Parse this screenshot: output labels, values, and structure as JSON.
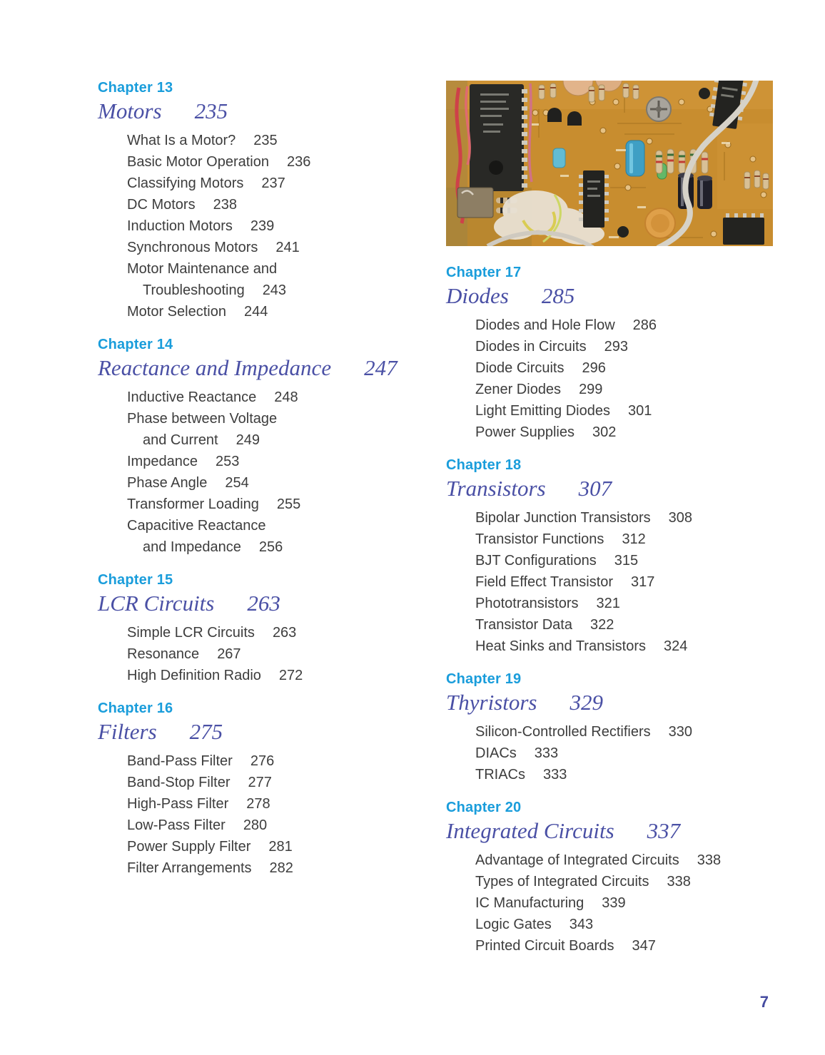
{
  "page": {
    "number": "7"
  },
  "colors": {
    "chapter_label": "#1a9ddb",
    "chapter_title": "#4a50a5",
    "entry_text": "#3d3d3d",
    "folio": "#454ba0",
    "pcb_board": "#c88d2f"
  },
  "photo": {
    "name": "circuit-board-photo",
    "description": "close-up photo of a printed circuit board with ICs, resistors and capacitors"
  },
  "columns": {
    "left": {
      "chapters": [
        {
          "label": "Chapter 13",
          "title": "Motors",
          "page": "235",
          "entries": [
            {
              "text": "What Is a Motor?",
              "page": "235"
            },
            {
              "text": "Basic Motor Operation",
              "page": "236"
            },
            {
              "text": "Classifying Motors",
              "page": "237"
            },
            {
              "text": "DC Motors",
              "page": "238"
            },
            {
              "text": "Induction Motors",
              "page": "239"
            },
            {
              "text": "Synchronous Motors",
              "page": "241"
            },
            {
              "text": "Motor Maintenance and",
              "text2": "Troubleshooting",
              "page": "243"
            },
            {
              "text": "Motor Selection",
              "page": "244"
            }
          ]
        },
        {
          "label": "Chapter 14",
          "title": "Reactance and Impedance",
          "page": "247",
          "entries": [
            {
              "text": "Inductive Reactance",
              "page": "248"
            },
            {
              "text": "Phase between Voltage",
              "text2": "and Current",
              "page": "249"
            },
            {
              "text": "Impedance",
              "page": "253"
            },
            {
              "text": "Phase Angle",
              "page": "254"
            },
            {
              "text": "Transformer Loading",
              "page": "255"
            },
            {
              "text": "Capacitive Reactance",
              "text2": "and Impedance",
              "page": "256"
            }
          ]
        },
        {
          "label": "Chapter 15",
          "title": "LCR Circuits",
          "page": "263",
          "entries": [
            {
              "text": "Simple LCR Circuits",
              "page": "263"
            },
            {
              "text": "Resonance",
              "page": "267"
            },
            {
              "text": "High Definition Radio",
              "page": "272"
            }
          ]
        },
        {
          "label": "Chapter 16",
          "title": "Filters",
          "page": "275",
          "entries": [
            {
              "text": "Band-Pass Filter",
              "page": "276"
            },
            {
              "text": "Band-Stop Filter",
              "page": "277"
            },
            {
              "text": "High-Pass Filter",
              "page": "278"
            },
            {
              "text": "Low-Pass Filter",
              "page": "280"
            },
            {
              "text": "Power Supply Filter",
              "page": "281"
            },
            {
              "text": "Filter Arrangements",
              "page": "282"
            }
          ]
        }
      ]
    },
    "right": {
      "chapters": [
        {
          "label": "Chapter 17",
          "title": "Diodes",
          "page": "285",
          "entries": [
            {
              "text": "Diodes and Hole Flow",
              "page": "286"
            },
            {
              "text": "Diodes in Circuits",
              "page": "293"
            },
            {
              "text": "Diode Circuits",
              "page": "296"
            },
            {
              "text": "Zener Diodes",
              "page": "299"
            },
            {
              "text": "Light Emitting Diodes",
              "page": "301"
            },
            {
              "text": "Power Supplies",
              "page": "302"
            }
          ]
        },
        {
          "label": "Chapter 18",
          "title": "Transistors",
          "page": "307",
          "entries": [
            {
              "text": "Bipolar Junction Transistors",
              "page": "308"
            },
            {
              "text": "Transistor Functions",
              "page": "312"
            },
            {
              "text": "BJT Configurations",
              "page": "315"
            },
            {
              "text": "Field Effect Transistor",
              "page": "317"
            },
            {
              "text": "Phototransistors",
              "page": "321"
            },
            {
              "text": "Transistor Data",
              "page": "322"
            },
            {
              "text": "Heat Sinks and Transistors",
              "page": "324"
            }
          ]
        },
        {
          "label": "Chapter 19",
          "title": "Thyristors",
          "page": "329",
          "entries": [
            {
              "text": "Silicon-Controlled Rectifiers",
              "page": "330"
            },
            {
              "text": "DIACs",
              "page": "333"
            },
            {
              "text": "TRIACs",
              "page": "333"
            }
          ]
        },
        {
          "label": "Chapter 20",
          "title": "Integrated Circuits",
          "page": "337",
          "entries": [
            {
              "text": "Advantage of Integrated Circuits",
              "page": "338"
            },
            {
              "text": "Types of Integrated Circuits",
              "page": "338"
            },
            {
              "text": "IC Manufacturing",
              "page": "339"
            },
            {
              "text": "Logic Gates",
              "page": "343"
            },
            {
              "text": "Printed Circuit Boards",
              "page": "347"
            }
          ]
        }
      ]
    }
  }
}
